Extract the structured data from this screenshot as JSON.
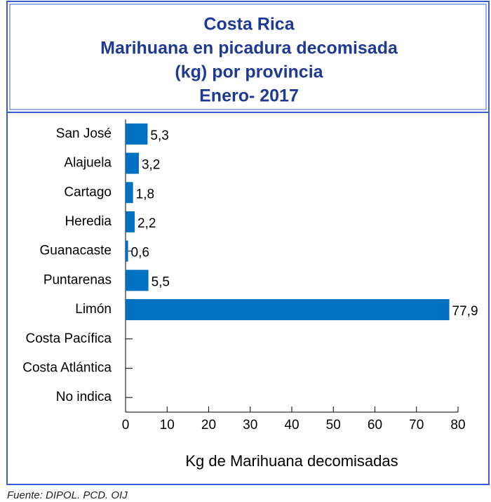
{
  "chart_data": {
    "type": "bar",
    "orientation": "horizontal",
    "title": [
      "Costa Rica",
      "Marihuana en picadura decomisada",
      "(kg) por provincia",
      "Enero- 2017"
    ],
    "categories": [
      "San José",
      "Alajuela",
      "Cartago",
      "Heredia",
      "Guanacaste",
      "Puntarenas",
      "Limón",
      "Costa Pacífica",
      "Costa Atlántica",
      "No indica"
    ],
    "values": [
      5.3,
      3.2,
      1.8,
      2.2,
      0.6,
      5.5,
      77.9,
      null,
      null,
      null
    ],
    "value_labels": [
      "5,3",
      "3,2",
      "1,8",
      "2,2",
      "0,6",
      "5,5",
      "77,9",
      null,
      null,
      null
    ],
    "color": "#0070c0",
    "xlim": [
      0,
      80
    ],
    "xticks": [
      0,
      10,
      20,
      30,
      40,
      50,
      60,
      70,
      80
    ],
    "xlabel": "Kg de Marihuana decomisadas",
    "source": "Fuente: DIPOL. PCD. OIJ"
  }
}
